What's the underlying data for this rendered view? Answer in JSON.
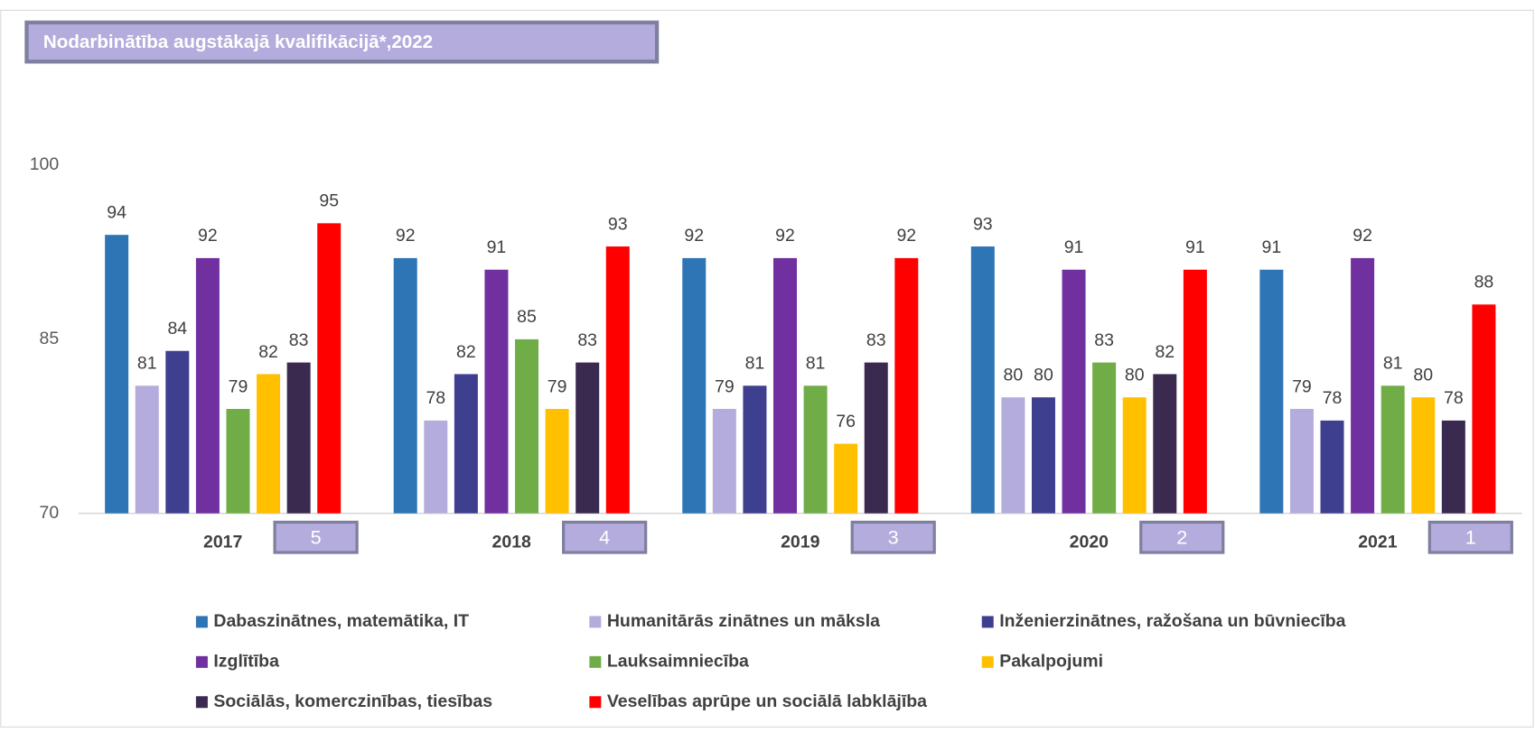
{
  "chart_data": {
    "type": "bar",
    "title": "Nodarbinātība augstākajā kvalifikācijā*,2022",
    "categories": [
      "2017",
      "2018",
      "2019",
      "2020",
      "2021"
    ],
    "rank_labels": [
      "5",
      "4",
      "3",
      "2",
      "1"
    ],
    "ylim": [
      70,
      100
    ],
    "yticks": [
      70,
      85,
      100
    ],
    "series": [
      {
        "name": "Dabaszinātnes, matemātika, IT",
        "color": "#2e75b6",
        "values": [
          94,
          92,
          92,
          93,
          91
        ]
      },
      {
        "name": "Humanitārās zinātnes un māksla",
        "color": "#b4acdc",
        "values": [
          81,
          78,
          79,
          80,
          79
        ]
      },
      {
        "name": "Inženierzinātnes, ražošana un būvniecība",
        "color": "#3f3f8f",
        "values": [
          84,
          82,
          81,
          80,
          78
        ]
      },
      {
        "name": "Izglītība",
        "color": "#7030a0",
        "values": [
          92,
          91,
          92,
          91,
          92
        ]
      },
      {
        "name": "Lauksaimniecība",
        "color": "#70ad47",
        "values": [
          79,
          85,
          81,
          83,
          81
        ]
      },
      {
        "name": "Pakalpojumi",
        "color": "#ffc000",
        "values": [
          82,
          79,
          76,
          80,
          80
        ]
      },
      {
        "name": "Sociālās, komerczinības, tiesības",
        "color": "#3b2a4f",
        "values": [
          83,
          83,
          83,
          82,
          78
        ]
      },
      {
        "name": "Veselības aprūpe un sociālā labklājība",
        "color": "#ff0000",
        "values": [
          95,
          93,
          92,
          91,
          88
        ]
      }
    ]
  }
}
